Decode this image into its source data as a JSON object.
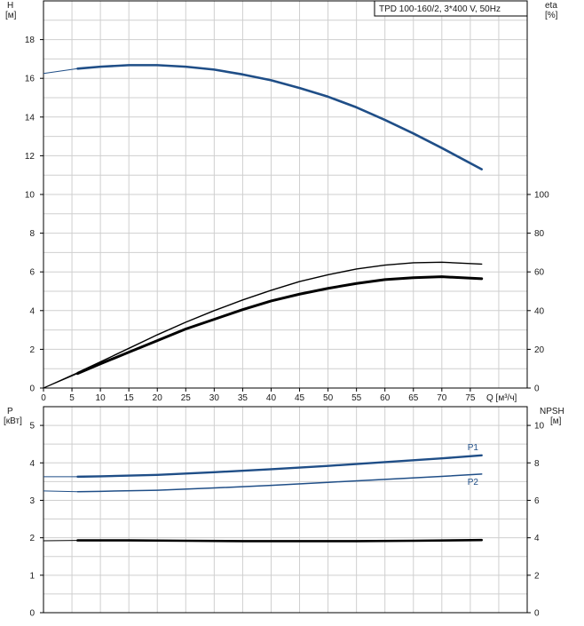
{
  "chart_data": [
    {
      "type": "line",
      "panel": "top",
      "title_box": "TPD 100-160/2, 3*400 V, 50Hz",
      "y_left_label_line1": "H",
      "y_left_label_line2": "[м]",
      "y_right_label_line1": "eta",
      "y_right_label_line2": "[%]",
      "x_label": "Q [м³/ч]",
      "xlim": [
        0,
        85
      ],
      "x_ticks": [
        0,
        5,
        10,
        15,
        20,
        25,
        30,
        35,
        40,
        45,
        50,
        55,
        60,
        65,
        70,
        75
      ],
      "ylim_left": [
        0,
        20
      ],
      "y_left_ticks": [
        0,
        2,
        4,
        6,
        8,
        10,
        12,
        14,
        16,
        18
      ],
      "ylim_right": [
        0,
        200
      ],
      "y_right_ticks": [
        0,
        20,
        40,
        60,
        80,
        100
      ],
      "grid": true,
      "series": [
        {
          "axis": "left",
          "color": "#1f4e87",
          "x": [
            6,
            10,
            15,
            20,
            25,
            30,
            35,
            40,
            45,
            50,
            55,
            60,
            65,
            70,
            77
          ],
          "y": [
            16.5,
            16.6,
            16.68,
            16.68,
            16.6,
            16.45,
            16.2,
            15.9,
            15.5,
            15.05,
            14.5,
            13.85,
            13.15,
            12.4,
            11.3
          ],
          "extension": {
            "x": [
              0,
              6
            ],
            "y": [
              16.25,
              16.5
            ]
          }
        },
        {
          "axis": "left",
          "color": "#000000",
          "x": [
            6,
            10,
            15,
            20,
            25,
            30,
            35,
            40,
            45,
            50,
            55,
            60,
            65,
            70,
            77
          ],
          "y": [
            0.8,
            1.35,
            2.05,
            2.75,
            3.4,
            4.0,
            4.55,
            5.05,
            5.5,
            5.85,
            6.15,
            6.35,
            6.47,
            6.5,
            6.4
          ],
          "extension": {
            "x": [
              0,
              6
            ],
            "y": [
              0,
              0.8
            ]
          }
        },
        {
          "axis": "left",
          "color": "#000000",
          "x": [
            6,
            10,
            15,
            20,
            25,
            30,
            35,
            40,
            45,
            50,
            55,
            60,
            65,
            70,
            77
          ],
          "y": [
            0.75,
            1.25,
            1.85,
            2.45,
            3.05,
            3.55,
            4.05,
            4.5,
            4.85,
            5.15,
            5.4,
            5.6,
            5.7,
            5.75,
            5.65
          ],
          "extension": {
            "x": [
              0,
              6
            ],
            "y": [
              0,
              0.75
            ]
          }
        }
      ]
    },
    {
      "type": "line",
      "panel": "bottom",
      "y_left_label_line1": "P",
      "y_left_label_line2": "[кВт]",
      "y_right_label_line1": "NPSH",
      "y_right_label_line2": "[м]",
      "xlim": [
        0,
        85
      ],
      "ylim_left": [
        0,
        5.5
      ],
      "y_left_ticks": [
        0,
        1,
        2,
        3,
        4,
        5
      ],
      "ylim_right": [
        0,
        11
      ],
      "y_right_ticks": [
        0,
        2,
        4,
        6,
        8,
        10
      ],
      "grid": true,
      "series": [
        {
          "name": "P1",
          "axis": "left",
          "color": "#1f4e87",
          "x": [
            6,
            10,
            20,
            30,
            40,
            50,
            60,
            70,
            77
          ],
          "y": [
            3.63,
            3.64,
            3.68,
            3.75,
            3.83,
            3.92,
            4.02,
            4.12,
            4.2
          ],
          "extension": {
            "x": [
              0,
              6
            ],
            "y": [
              3.63,
              3.63
            ]
          }
        },
        {
          "name": "P2",
          "axis": "left",
          "color": "#1f4e87",
          "x": [
            6,
            10,
            20,
            30,
            40,
            50,
            60,
            70,
            77
          ],
          "y": [
            3.23,
            3.24,
            3.27,
            3.33,
            3.4,
            3.48,
            3.56,
            3.64,
            3.7
          ],
          "extension": {
            "x": [
              0,
              6
            ],
            "y": [
              3.25,
              3.23
            ]
          }
        },
        {
          "axis": "left",
          "color": "#000000",
          "x": [
            6,
            15,
            25,
            35,
            45,
            55,
            65,
            77
          ],
          "y": [
            1.93,
            1.93,
            1.92,
            1.91,
            1.91,
            1.91,
            1.92,
            1.94
          ],
          "extension": {
            "x": [
              0,
              6
            ],
            "y": [
              1.92,
              1.93
            ]
          }
        }
      ]
    }
  ]
}
